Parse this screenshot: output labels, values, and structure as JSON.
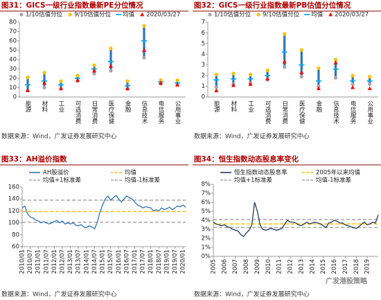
{
  "watermark": "广发港股策略",
  "chart_data": [
    {
      "type": "dot",
      "title": "图31：GICS一级行业指数最新PE分位情况",
      "source": "数据来源：Wind，广发证券发展研究中心",
      "categories": [
        "能源",
        "材料",
        "工业",
        "可选消费",
        "日常消费",
        "医疗保健",
        "金融",
        "信息技术",
        "电信服务",
        "公用事业"
      ],
      "range_color": "#2e75b6",
      "series": [
        {
          "name": "1/10估值分位",
          "color": "#a6a6a6",
          "marker": "circle",
          "values": [
            7,
            10,
            9,
            17,
            25,
            28,
            9,
            42,
            14,
            13
          ]
        },
        {
          "name": "9/10估值分位",
          "color": "#ffc000",
          "marker": "circle",
          "values": [
            21,
            26,
            17,
            23,
            34,
            52,
            17,
            76,
            18,
            18
          ]
        },
        {
          "name": "均值",
          "color": "#00b0f0",
          "marker": "dash",
          "values": [
            13,
            17,
            13,
            20,
            30,
            38,
            12,
            60,
            16,
            15
          ]
        },
        {
          "name": "2020/03/27",
          "color": "#ff0000",
          "marker": "triangle",
          "values": [
            7,
            15,
            9,
            18,
            28,
            33,
            9,
            50,
            15,
            13
          ]
        }
      ],
      "ylim": [
        0,
        80
      ],
      "yticks": [
        0,
        10,
        20,
        30,
        40,
        50,
        60,
        70,
        80
      ]
    },
    {
      "type": "dot",
      "title": "图32：GICS一级行业指数最新PB估值分位情况",
      "source": "数据来源：Wind，广发证券发展研究中心",
      "categories": [
        "能源",
        "材料",
        "工业",
        "可选消费",
        "日常消费",
        "医疗保健",
        "金融",
        "信息技术",
        "电信服务",
        "公用事业"
      ],
      "range_color": "#2e75b6",
      "series": [
        {
          "name": "1/10估值分位",
          "color": "#a6a6a6",
          "marker": "circle",
          "values": [
            0.9,
            1.2,
            1.3,
            1.6,
            2.8,
            1.9,
            1.0,
            1.8,
            1.2,
            1.2
          ]
        },
        {
          "name": "9/10估值分位",
          "color": "#ffc000",
          "marker": "circle",
          "values": [
            2.1,
            2.2,
            2.1,
            2.5,
            5.9,
            4.4,
            2.7,
            3.5,
            2.0,
            1.9
          ]
        },
        {
          "name": "均值",
          "color": "#00b0f0",
          "marker": "dash",
          "values": [
            1.6,
            1.7,
            1.7,
            2.0,
            4.2,
            3.0,
            1.5,
            2.6,
            1.5,
            1.5
          ]
        },
        {
          "name": "2020/03/27",
          "color": "#ff0000",
          "marker": "triangle",
          "values": [
            0.6,
            1.1,
            1.2,
            1.7,
            3.3,
            2.3,
            0.8,
            3.2,
            0.9,
            0.8
          ]
        }
      ],
      "ylim": [
        0,
        7
      ],
      "yticks": [
        0,
        1,
        2,
        3,
        4,
        5,
        6,
        7
      ]
    },
    {
      "type": "line",
      "title": "图33：AH溢价指数",
      "source": "数据来源：Wind，广发证券发展研究中心",
      "categories": [
        "2010/01",
        null,
        null,
        "2010/07",
        null,
        null,
        "2011/01",
        null,
        null,
        "2011/07",
        null,
        null,
        "2012/01",
        null,
        null,
        "2012/07",
        null,
        null,
        "2013/01",
        null,
        null,
        "2013/07",
        null,
        null,
        "2014/01",
        null,
        null,
        "2014/07",
        null,
        null,
        "2015/01",
        null,
        null,
        "2015/07",
        null,
        null,
        "2016/01",
        null,
        null,
        "2016/07",
        null,
        null,
        "2017/01",
        null,
        null,
        "2017/07",
        null,
        null,
        "2018/01",
        null,
        null,
        "2018/07",
        null,
        null,
        "2019/01",
        null,
        null,
        "2019/07",
        null,
        null,
        "2020/01",
        null
      ],
      "series": [
        {
          "name": "AH股溢价",
          "color": "#2e75b6",
          "values": [
            125,
            128,
            115,
            110,
            108,
            105,
            103,
            100,
            102,
            100,
            98,
            100,
            102,
            104,
            100,
            103,
            98,
            100,
            98,
            100,
            96,
            95,
            97,
            93,
            92,
            95,
            93,
            90,
            100,
            118,
            130,
            140,
            145,
            138,
            142,
            146,
            140,
            135,
            140,
            145,
            142,
            140,
            135,
            130,
            128,
            125,
            127,
            126,
            125,
            120,
            122,
            120,
            125,
            122,
            124,
            126,
            122,
            125,
            128,
            127,
            130,
            126
          ]
        }
      ],
      "reference_lines": [
        {
          "name": "均值",
          "color": "#ffc000",
          "value": 119
        },
        {
          "name": "均值+1标准差",
          "color": "#a6a6a6",
          "value": 138
        },
        {
          "name": "均值-1标准差",
          "color": "#a6a6a6",
          "value": 101
        }
      ],
      "ylim": [
        60,
        160
      ],
      "yticks": [
        60,
        80,
        100,
        120,
        140,
        160
      ]
    },
    {
      "type": "line",
      "title": "图34：恒生指数动态股息率变化",
      "source": "数据来源：Wind，广发证券发展研究中心",
      "categories": [
        "2005",
        null,
        null,
        null,
        "2006",
        null,
        null,
        null,
        "2007",
        null,
        null,
        null,
        "2008",
        null,
        null,
        null,
        "2009",
        null,
        null,
        null,
        "2010",
        null,
        null,
        null,
        "2011",
        null,
        null,
        null,
        "2012",
        null,
        null,
        null,
        "2013",
        null,
        null,
        null,
        "2014",
        null,
        null,
        null,
        "2015",
        null,
        null,
        null,
        "2016",
        null,
        null,
        null,
        "2017",
        null,
        null,
        null,
        "2018",
        null,
        null,
        null,
        "2019",
        null,
        null,
        null,
        null
      ],
      "series": [
        {
          "name": "恒生指数动态股息率",
          "color": "#1f3864",
          "values": [
            3.8,
            3.6,
            3.5,
            3.4,
            3.5,
            3.3,
            3.2,
            3.0,
            2.9,
            2.8,
            2.4,
            2.2,
            2.6,
            2.9,
            3.5,
            6.0,
            5.0,
            3.5,
            3.0,
            2.9,
            3.0,
            3.1,
            3.0,
            2.9,
            3.0,
            3.1,
            3.6,
            4.0,
            3.8,
            3.8,
            3.7,
            3.5,
            3.4,
            3.6,
            3.8,
            3.6,
            3.7,
            3.8,
            3.7,
            3.6,
            3.4,
            3.2,
            3.7,
            3.8,
            4.0,
            3.9,
            3.7,
            3.7,
            3.5,
            3.4,
            3.3,
            3.2,
            3.1,
            3.3,
            3.6,
            3.8,
            3.5,
            3.6,
            3.8,
            3.7,
            4.6
          ]
        }
      ],
      "reference_lines": [
        {
          "name": "2005年以来均值",
          "color": "#ffc000",
          "value": 3.6
        },
        {
          "name": "均值+1标准差",
          "color": "#a6a6a6",
          "value": 4.1
        },
        {
          "name": "均值-1标准差",
          "color": "#a6a6a6",
          "value": 3.2
        }
      ],
      "ylim": [
        0,
        8
      ],
      "yticks": [
        {
          "value": 0,
          "label": "0%"
        },
        {
          "value": 1,
          "label": "1%"
        },
        {
          "value": 2,
          "label": "2%"
        },
        {
          "value": 3,
          "label": "3%"
        },
        {
          "value": 4,
          "label": "4%"
        },
        {
          "value": 5,
          "label": "5%"
        },
        {
          "value": 6,
          "label": "6%"
        },
        {
          "value": 7,
          "label": "7%"
        },
        {
          "value": 8,
          "label": "8%"
        }
      ]
    }
  ]
}
